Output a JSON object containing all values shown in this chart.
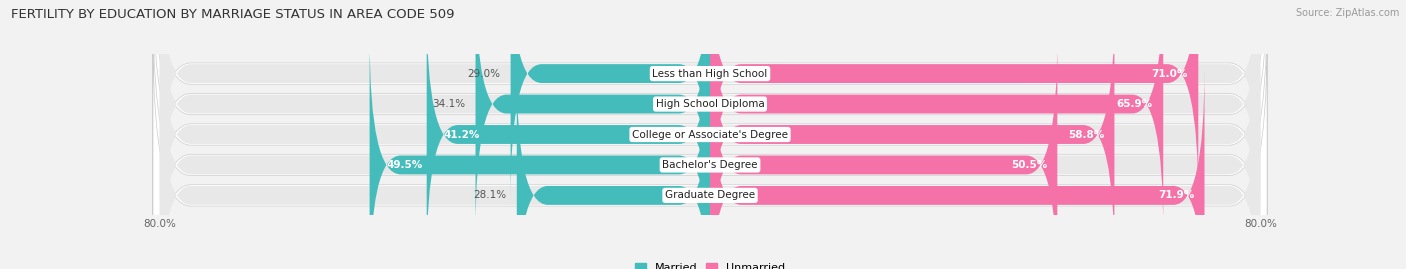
{
  "title": "FERTILITY BY EDUCATION BY MARRIAGE STATUS IN AREA CODE 509",
  "source": "Source: ZipAtlas.com",
  "categories": [
    "Less than High School",
    "High School Diploma",
    "College or Associate's Degree",
    "Bachelor's Degree",
    "Graduate Degree"
  ],
  "married": [
    29.0,
    34.1,
    41.2,
    49.5,
    28.1
  ],
  "unmarried": [
    71.0,
    65.9,
    58.8,
    50.5,
    71.9
  ],
  "married_color": "#45BCBC",
  "unmarried_color": "#F472A8",
  "background_color": "#f2f2f2",
  "bar_bg_color": "#e8e8e8",
  "label_fontsize": 7.5,
  "title_fontsize": 9.5,
  "bar_height": 0.62,
  "scale": 80.0
}
